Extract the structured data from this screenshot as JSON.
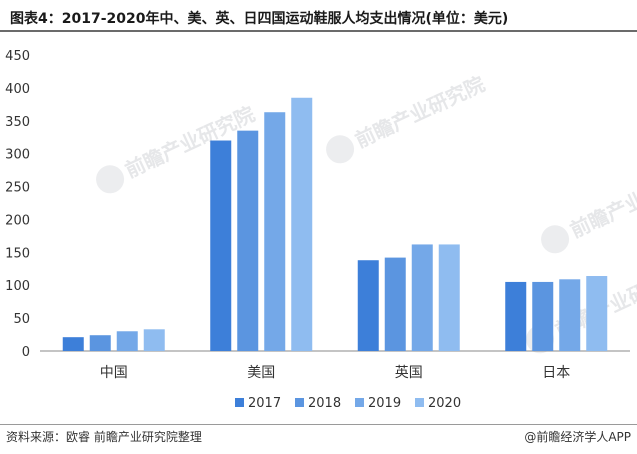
{
  "title": "图表4：2017-2020年中、美、英、日四国运动鞋服人均支出情况(单位：美元)",
  "footer": {
    "source": "资料来源：欧睿 前瞻产业研究院整理",
    "credit": "@前瞻经济学人APP"
  },
  "watermark_text": "前瞻产业研究院",
  "colors": {
    "series": [
      "#3d7fd9",
      "#5b95e0",
      "#74a8e8",
      "#8fbcf0"
    ],
    "axis": "#888888",
    "text": "#333333"
  },
  "chart_data": {
    "type": "bar",
    "title": "图表4：2017-2020年中、美、英、日四国运动鞋服人均支出情况(单位：美元)",
    "categories": [
      "中国",
      "美国",
      "英国",
      "日本"
    ],
    "series": [
      {
        "name": "2017",
        "values": [
          21,
          320,
          138,
          105
        ]
      },
      {
        "name": "2018",
        "values": [
          24,
          335,
          142,
          105
        ]
      },
      {
        "name": "2019",
        "values": [
          30,
          363,
          162,
          109
        ]
      },
      {
        "name": "2020",
        "values": [
          33,
          385,
          162,
          114
        ]
      }
    ],
    "ylim": [
      0,
      450
    ],
    "yticks": [
      0,
      50,
      100,
      150,
      200,
      250,
      300,
      350,
      400,
      450
    ],
    "grid": false,
    "legend": "bottom"
  }
}
